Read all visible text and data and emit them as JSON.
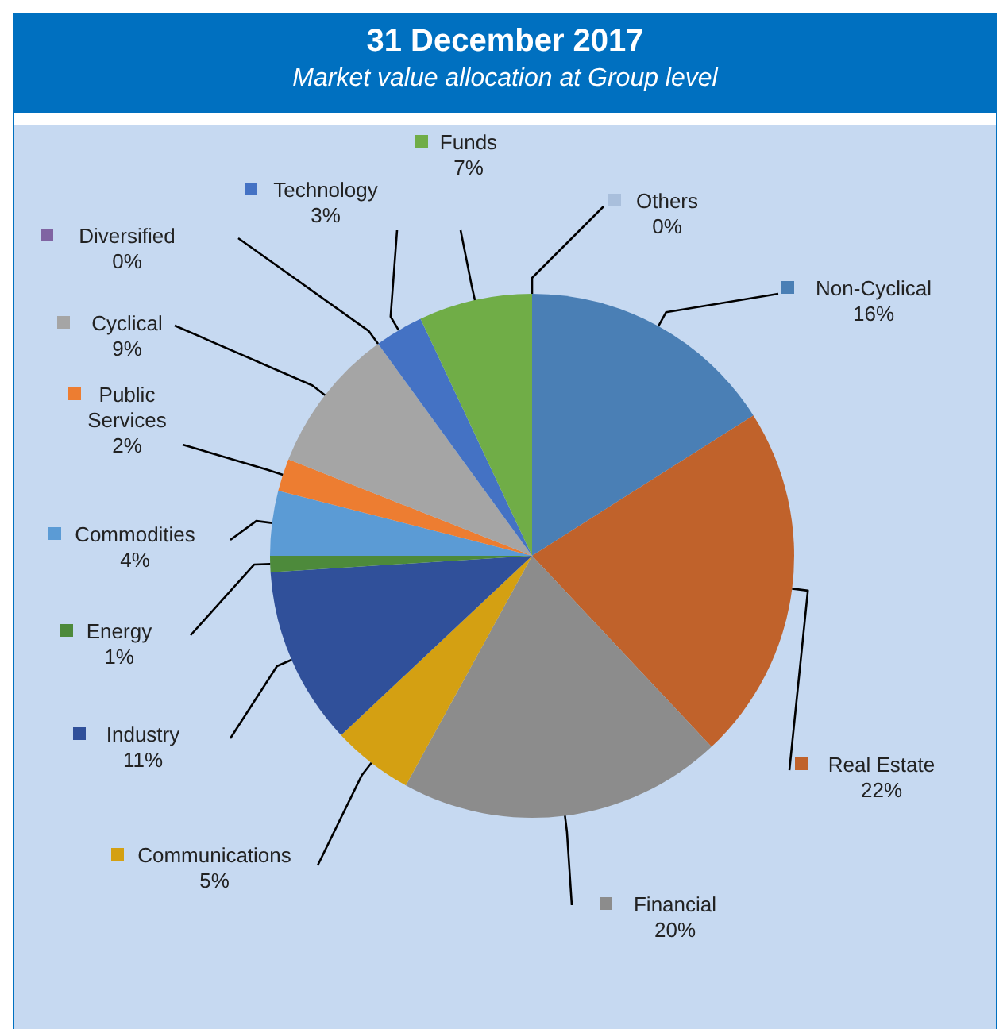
{
  "chart_data": {
    "type": "pie",
    "legend": "left",
    "title": "31 December 2017",
    "subtitle": "Market value allocation at Group level",
    "categories": [
      "Others",
      "Non-Cyclical",
      "Real Estate",
      "Financial",
      "Communications",
      "Industry",
      "Energy",
      "Commodities",
      "Public Services",
      "Cyclical",
      "Diversified",
      "Technology",
      "Funds"
    ],
    "values": [
      0,
      16,
      22,
      20,
      5,
      11,
      1,
      4,
      2,
      9,
      0,
      3,
      7
    ],
    "colors": [
      "#a9bfdc",
      "#4a7fb5",
      "#c0622b",
      "#8c8c8c",
      "#d4a012",
      "#30509a",
      "#4d8a3b",
      "#5b9bd5",
      "#ed7d31",
      "#a5a5a5",
      "#8064a2",
      "#4472c4",
      "#70ad47"
    ],
    "value_labels": [
      "0%",
      "16%",
      "22%",
      "20%",
      "5%",
      "11%",
      "1%",
      "4%",
      "2%",
      "9%",
      "0%",
      "3%",
      "7%"
    ]
  }
}
